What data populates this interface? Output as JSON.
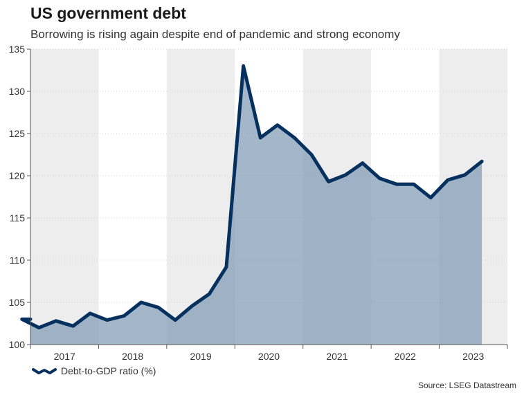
{
  "title": "US government debt",
  "subtitle": "Borrowing is rising again despite end of pandemic and strong economy",
  "source": "Source: LSEG Datastream",
  "chart_data": {
    "type": "area",
    "x_labels": [
      "2017",
      "2018",
      "2019",
      "2020",
      "2021",
      "2022",
      "2023"
    ],
    "ylim": [
      100,
      135
    ],
    "y_ticks": [
      100,
      105,
      110,
      115,
      120,
      125,
      130,
      135
    ],
    "series": [
      {
        "name": "Debt-to-GDP ratio (%)",
        "color": "#06305e",
        "fill": "#7f9ab5",
        "points": [
          {
            "x": "2016-Q4",
            "y": 103.0
          },
          {
            "x": "2017-Q1",
            "y": 102.0
          },
          {
            "x": "2017-Q2",
            "y": 102.8
          },
          {
            "x": "2017-Q3",
            "y": 102.2
          },
          {
            "x": "2017-Q4",
            "y": 103.7
          },
          {
            "x": "2018-Q1",
            "y": 102.9
          },
          {
            "x": "2018-Q2",
            "y": 103.4
          },
          {
            "x": "2018-Q3",
            "y": 105.0
          },
          {
            "x": "2018-Q4",
            "y": 104.4
          },
          {
            "x": "2019-Q1",
            "y": 102.9
          },
          {
            "x": "2019-Q2",
            "y": 104.6
          },
          {
            "x": "2019-Q3",
            "y": 106.0
          },
          {
            "x": "2019-Q4",
            "y": 109.2
          },
          {
            "x": "2020-Q1",
            "y": 133.0
          },
          {
            "x": "2020-Q2",
            "y": 124.5
          },
          {
            "x": "2020-Q3",
            "y": 126.0
          },
          {
            "x": "2020-Q4",
            "y": 124.5
          },
          {
            "x": "2021-Q1",
            "y": 122.5
          },
          {
            "x": "2021-Q2",
            "y": 119.3
          },
          {
            "x": "2021-Q3",
            "y": 120.1
          },
          {
            "x": "2021-Q4",
            "y": 121.5
          },
          {
            "x": "2022-Q1",
            "y": 119.7
          },
          {
            "x": "2022-Q2",
            "y": 119.0
          },
          {
            "x": "2022-Q3",
            "y": 119.0
          },
          {
            "x": "2022-Q4",
            "y": 117.4
          },
          {
            "x": "2023-Q1",
            "y": 119.5
          },
          {
            "x": "2023-Q2",
            "y": 120.1
          },
          {
            "x": "2023-Q3",
            "y": 121.7
          }
        ]
      }
    ],
    "shaded_years": [
      "2017",
      "2019",
      "2021",
      "2023"
    ],
    "shade_color": "#ededed",
    "grid": "horizontal-dotted",
    "legend_position": "bottom-left"
  }
}
